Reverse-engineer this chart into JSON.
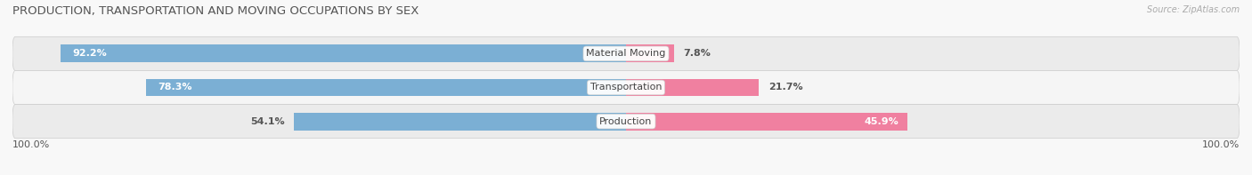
{
  "title": "PRODUCTION, TRANSPORTATION AND MOVING OCCUPATIONS BY SEX",
  "source": "Source: ZipAtlas.com",
  "categories": [
    "Material Moving",
    "Transportation",
    "Production"
  ],
  "male_values": [
    92.2,
    78.3,
    54.1
  ],
  "female_values": [
    7.8,
    21.7,
    45.9
  ],
  "male_color": "#7bafd4",
  "female_color": "#f080a0",
  "male_color_light": "#a8c8e8",
  "female_color_light": "#f8b8c8",
  "row_bg_light": "#f0f0f0",
  "row_bg_dark": "#e2e2e2",
  "background_color": "#f8f8f8",
  "title_fontsize": 9.5,
  "source_fontsize": 7,
  "label_fontsize": 8,
  "tick_fontsize": 8,
  "legend_fontsize": 8.5,
  "bar_height": 0.52,
  "xlim_left": -100,
  "xlim_right": 100,
  "axis_label_left": "100.0%",
  "axis_label_right": "100.0%",
  "male_label_threshold": 60,
  "female_label_threshold": 25
}
